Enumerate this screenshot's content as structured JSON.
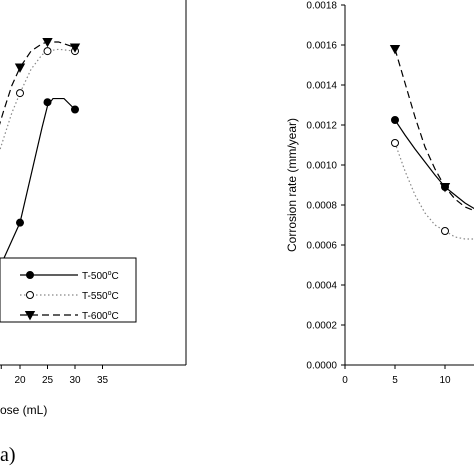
{
  "panel_label": "a)",
  "chart_data": [
    {
      "type": "line",
      "title": "",
      "xlabel": "ose (mL)",
      "ylabel": "",
      "x_ticks": [
        "20",
        "25",
        "30",
        "35"
      ],
      "xlim": [
        15.5,
        35
      ],
      "ylim": [
        0,
        1
      ],
      "legend_position": "lower-right",
      "grid": false,
      "series": [
        {
          "name": "T-500",
          "name_sup": "o",
          "name_unit": "C",
          "marker": "filled-circle",
          "line": "solid",
          "color": "#000000",
          "x": [
            20,
            25,
            30
          ],
          "y": [
            0.39,
            0.72,
            0.7
          ],
          "curve_x": [
            15.5,
            17,
            18.5,
            20,
            22,
            24,
            25,
            26,
            28,
            30
          ],
          "curve_y": [
            0.25,
            0.29,
            0.34,
            0.39,
            0.52,
            0.65,
            0.71,
            0.73,
            0.73,
            0.7
          ]
        },
        {
          "name": "T-550",
          "name_sup": "o",
          "name_unit": "C",
          "marker": "open-circle",
          "line": "dotted",
          "color": "#888888",
          "x": [
            20,
            25,
            30
          ],
          "y": [
            0.745,
            0.86,
            0.86
          ],
          "curve_x": [
            15.5,
            17,
            18.5,
            20,
            22,
            24,
            25,
            27,
            30
          ],
          "curve_y": [
            0.55,
            0.62,
            0.69,
            0.745,
            0.81,
            0.85,
            0.86,
            0.865,
            0.86
          ]
        },
        {
          "name": "T-600",
          "name_sup": "o",
          "name_unit": "C",
          "marker": "filled-triangle-down",
          "line": "dashed",
          "color": "#000000",
          "x": [
            20,
            25,
            30
          ],
          "y": [
            0.815,
            0.885,
            0.87
          ],
          "curve_x": [
            15.5,
            17,
            18.5,
            20,
            22,
            24,
            25,
            27,
            30
          ],
          "curve_y": [
            0.62,
            0.695,
            0.765,
            0.815,
            0.86,
            0.88,
            0.885,
            0.885,
            0.87
          ]
        }
      ]
    },
    {
      "type": "line",
      "title": "",
      "xlabel": "",
      "ylabel": "Corrosion rate (mm/year)",
      "y_ticks": [
        "0.0000",
        "0.0002",
        "0.0004",
        "0.0006",
        "0.0008",
        "0.0010",
        "0.0012",
        "0.0014",
        "0.0016",
        "0.0018"
      ],
      "x_ticks": [
        "0",
        "5",
        "10"
      ],
      "xlim": [
        0,
        13
      ],
      "ylim": [
        0,
        0.0018
      ],
      "grid": false,
      "series": [
        {
          "name": "T-500",
          "marker": "filled-circle",
          "line": "solid",
          "color": "#000000",
          "x": [
            5,
            10
          ],
          "y": [
            0.001225,
            0.00089
          ],
          "curve_x": [
            5,
            6,
            7,
            8,
            9,
            10,
            11,
            12,
            13
          ],
          "curve_y": [
            0.001225,
            0.00115,
            0.00108,
            0.001015,
            0.00095,
            0.00089,
            0.00085,
            0.00081,
            0.00078
          ]
        },
        {
          "name": "T-550",
          "marker": "open-circle",
          "line": "dotted",
          "color": "#888888",
          "x": [
            5,
            10
          ],
          "y": [
            0.00111,
            0.00067
          ],
          "curve_x": [
            5,
            6,
            7,
            8,
            9,
            10,
            11,
            12,
            13
          ],
          "curve_y": [
            0.00111,
            0.00097,
            0.00085,
            0.00076,
            0.0007,
            0.00067,
            0.00064,
            0.00063,
            0.00063
          ]
        },
        {
          "name": "T-600",
          "marker": "filled-triangle-down",
          "line": "dashed",
          "color": "#000000",
          "x": [
            5,
            10
          ],
          "y": [
            0.00158,
            0.00089
          ],
          "curve_x": [
            5,
            6,
            7,
            8,
            9,
            10,
            11,
            12,
            13
          ],
          "curve_y": [
            0.00158,
            0.00141,
            0.00124,
            0.00109,
            0.00098,
            0.00089,
            0.00083,
            0.00079,
            0.00077
          ]
        }
      ]
    }
  ]
}
